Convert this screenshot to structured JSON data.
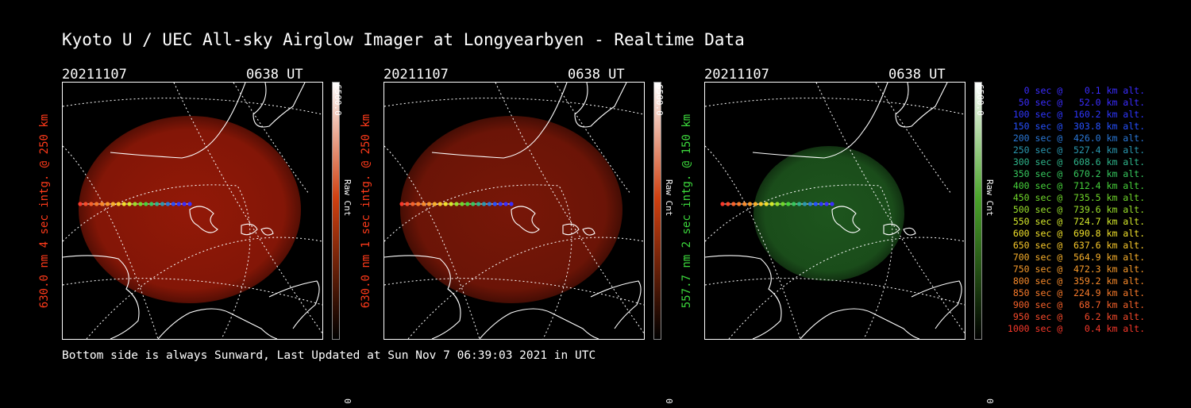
{
  "title": "Kyoto U / UEC All-sky Airglow Imager at Longyearbyen - Realtime Data",
  "footer": "Bottom side is always Sunward, Last Updated at Sun Nov  7 06:39:03 2021 in UTC",
  "panels": [
    {
      "date": "20211107",
      "time": "0638 UT",
      "ylabel": "630.0 nm 4 sec intg. @ 250 km",
      "label_color": "#ff3a1a",
      "glow_color": "#9a1a08",
      "cbar_top": "#ffffff",
      "cbar_mid": "#d04010",
      "cbar_max": "6500.0",
      "cbar_unit": "Raw Cnt",
      "cbar_min": "0"
    },
    {
      "date": "20211107",
      "time": "0638 UT",
      "ylabel": "630.0 nm 1 sec intg. @ 250 km",
      "label_color": "#ff3a1a",
      "glow_color": "#7e1808",
      "cbar_top": "#ffffff",
      "cbar_mid": "#d04010",
      "cbar_max": "6500.0",
      "cbar_unit": "Raw Cnt",
      "cbar_min": "0"
    },
    {
      "date": "20211107",
      "time": "0638 UT",
      "ylabel": "557.7 nm 2 sec intg. @ 150 km",
      "label_color": "#3cd83c",
      "glow_color": "#1f5a1f",
      "cbar_top": "#ffffff",
      "cbar_mid": "#4aa42a",
      "cbar_max": "6500.0",
      "cbar_unit": "Raw Cnt",
      "cbar_min": "0"
    }
  ],
  "legend": [
    {
      "text": "   0 sec @    0.1 km alt.",
      "color": "#3a2cff"
    },
    {
      "text": "  50 sec @   52.0 km alt.",
      "color": "#3a2cff"
    },
    {
      "text": " 100 sec @  160.2 km alt.",
      "color": "#2e36ff"
    },
    {
      "text": " 150 sec @  303.8 km alt.",
      "color": "#2650ff"
    },
    {
      "text": " 200 sec @  426.0 km alt.",
      "color": "#2a78d8"
    },
    {
      "text": " 250 sec @  527.4 km alt.",
      "color": "#2a98b0"
    },
    {
      "text": " 300 sec @  608.6 km alt.",
      "color": "#2eb48a"
    },
    {
      "text": " 350 sec @  670.2 km alt.",
      "color": "#36c85e"
    },
    {
      "text": " 400 sec @  712.4 km alt.",
      "color": "#46d23a"
    },
    {
      "text": " 450 sec @  735.5 km alt.",
      "color": "#70d82a"
    },
    {
      "text": " 500 sec @  739.6 km alt.",
      "color": "#9ae02a"
    },
    {
      "text": " 550 sec @  724.7 km alt.",
      "color": "#d4e82a"
    },
    {
      "text": " 600 sec @  690.8 km alt.",
      "color": "#f0e02a"
    },
    {
      "text": " 650 sec @  637.6 km alt.",
      "color": "#f8c82a"
    },
    {
      "text": " 700 sec @  564.9 km alt.",
      "color": "#f8b02a"
    },
    {
      "text": " 750 sec @  472.3 km alt.",
      "color": "#f89a2a"
    },
    {
      "text": " 800 sec @  359.2 km alt.",
      "color": "#f88a2a"
    },
    {
      "text": " 850 sec @  224.9 km alt.",
      "color": "#f87a2a"
    },
    {
      "text": " 900 sec @   68.7 km alt.",
      "color": "#f8622a"
    },
    {
      "text": " 950 sec @    6.2 km alt.",
      "color": "#f84a2a"
    },
    {
      "text": "1000 sec @    0.4 km alt.",
      "color": "#f8382a"
    }
  ]
}
